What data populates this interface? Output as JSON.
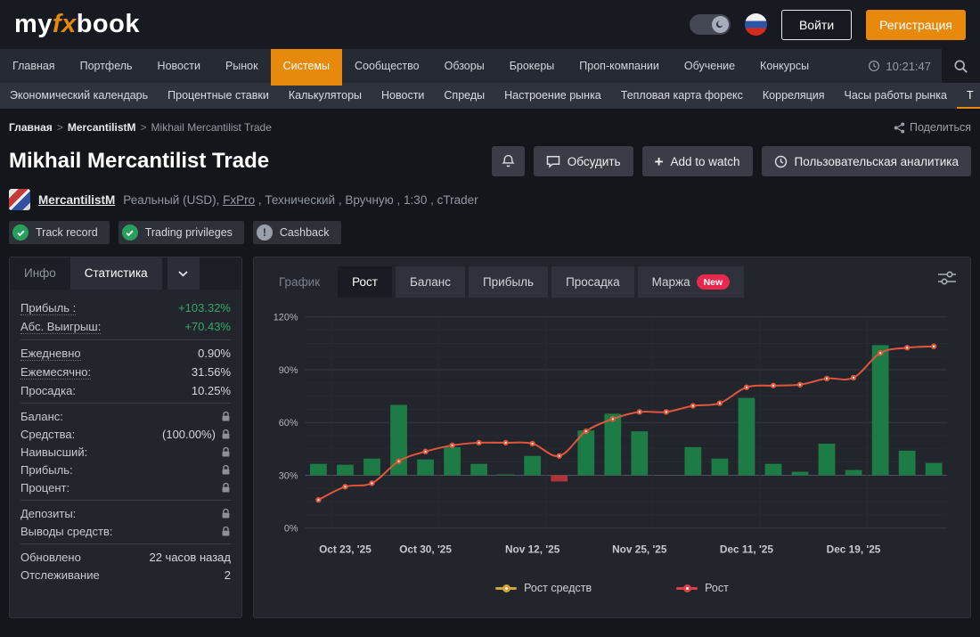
{
  "header": {
    "logo_my": "my",
    "logo_fx": "fx",
    "logo_book": "book",
    "login_label": "Войти",
    "signup_label": "Регистрация"
  },
  "nav": {
    "items": [
      "Главная",
      "Портфель",
      "Новости",
      "Рынок",
      "Системы",
      "Сообщество",
      "Обзоры",
      "Брокеры",
      "Проп-компании",
      "Обучение",
      "Конкурсы"
    ],
    "active_index": 4,
    "time": "10:21:47"
  },
  "subnav": {
    "items": [
      "Экономический календарь",
      "Процентные ставки",
      "Калькуляторы",
      "Новости",
      "Спреды",
      "Настроение рынка",
      "Тепловая карта форекс",
      "Корреляция",
      "Часы работы рынка",
      "Т"
    ]
  },
  "breadcrumb": {
    "items": [
      "Главная",
      "MercantilistM",
      "Mikhail Mercantilist Trade"
    ],
    "share_label": "Поделиться"
  },
  "page": {
    "title": "Mikhail Mercantilist Trade",
    "discuss_label": "Обсудить",
    "add_watch_label": "Add to watch",
    "analytics_label": "Пользовательская аналитика"
  },
  "account": {
    "name": "MercantilistM",
    "info_pre": "Реальный (USD), ",
    "broker": "FxPro",
    "info_post": " , Технический , Вручную , 1:30 , cTrader"
  },
  "badges": [
    {
      "label": "Track record",
      "icon": "check"
    },
    {
      "label": "Trading privileges",
      "icon": "check"
    },
    {
      "label": "Cashback",
      "icon": "exclamation"
    }
  ],
  "sidebar": {
    "tabs": [
      {
        "label": "Инфо"
      },
      {
        "label": "Статистика",
        "active": true
      }
    ],
    "stat_groups": [
      [
        {
          "label": "Прибыль :",
          "value": "+103.32%",
          "green": true,
          "dotted": true
        },
        {
          "label": "Абс. Выигрыш:",
          "value": "+70.43%",
          "green": true,
          "dotted": true
        }
      ],
      [
        {
          "label": "Ежедневно",
          "value": "0.90%",
          "dotted": true
        },
        {
          "label": "Ежемесячно:",
          "value": "31.56%",
          "dotted": true
        },
        {
          "label": "Просадка:",
          "value": "10.25%"
        }
      ],
      [
        {
          "label": "Баланс:",
          "locked": true
        },
        {
          "label": "Средства:",
          "value": "(100.00%)",
          "locked": true
        },
        {
          "label": "Наивысший:",
          "locked": true
        },
        {
          "label": "Прибыль:",
          "locked": true
        },
        {
          "label": "Процент:",
          "locked": true
        }
      ],
      [
        {
          "label": "Депозиты:",
          "locked": true
        },
        {
          "label": "Выводы средств:",
          "locked": true
        }
      ],
      [
        {
          "label": "Обновлено",
          "value": "22 часов назад"
        },
        {
          "label": "Отслеживание",
          "value": "2"
        }
      ]
    ]
  },
  "chart": {
    "tabs": [
      {
        "label": "График",
        "disabled": true
      },
      {
        "label": "Рост",
        "active": true
      },
      {
        "label": "Баланс"
      },
      {
        "label": "Прибыль"
      },
      {
        "label": "Просадка"
      },
      {
        "label": "Маржа",
        "badge": "New"
      }
    ]
  },
  "chart_data": {
    "type": "bar+line",
    "y_unit": "%",
    "ylim": [
      0,
      120
    ],
    "y_ticks": [
      0,
      30,
      60,
      90,
      120
    ],
    "bar_baseline": 30,
    "x_tick_labels": [
      "Oct 23, '25",
      "Oct 30, '25",
      "Nov 12, '25",
      "Nov 25, '25",
      "Dec 11, '25",
      "Dec 19, '25"
    ],
    "x_tick_slots": [
      1,
      4,
      8,
      12,
      16,
      20
    ],
    "grid": true,
    "series": [
      {
        "name": "Рост средств",
        "type": "bar",
        "values": [
          36.5,
          36,
          39.5,
          70,
          39,
          46,
          36.5,
          30.5,
          41,
          26.5,
          55.5,
          65,
          55,
          null,
          46,
          39.5,
          74,
          36.5,
          32,
          48,
          33,
          104,
          44,
          37
        ]
      },
      {
        "name": "Рост",
        "type": "line",
        "values": [
          16,
          23.5,
          25.5,
          38,
          43.5,
          47,
          48.5,
          48.5,
          48,
          41,
          55,
          62,
          66,
          66,
          69.5,
          71,
          80,
          81,
          81.5,
          85,
          85.5,
          99.5,
          102.5,
          103.3
        ]
      }
    ],
    "legend": [
      {
        "label": "Рост средств",
        "color": "#d2a43a"
      },
      {
        "label": "Рост",
        "color": "#dd4048"
      }
    ]
  },
  "colors": {
    "accent_orange": "#e7890c",
    "profit_green": "#33a968",
    "bar_green": "#1d7c45",
    "bar_red": "#b13538",
    "line_red": "#e2573b",
    "new_badge_red": "#e8294d",
    "check_green": "#27a05d"
  }
}
